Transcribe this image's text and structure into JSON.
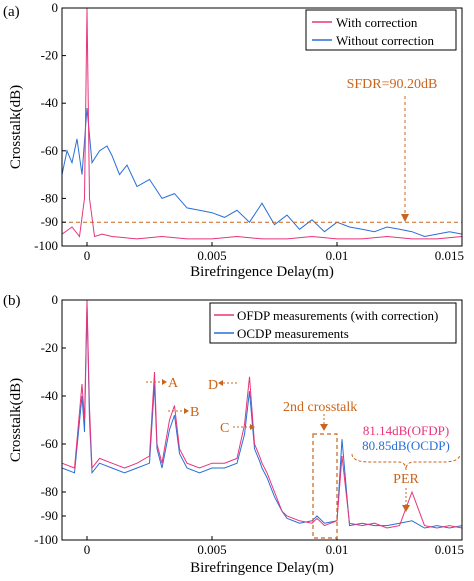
{
  "colors": {
    "with": "#e8347a",
    "without": "#2a6fd6",
    "annot": "#c9651c",
    "dash": "#c9651c",
    "axis": "#000000"
  },
  "chart_data": [
    {
      "panel_label": "(a)",
      "type": "line",
      "xlabel": "Birefringence Delay(m)",
      "ylabel": "Crosstalk(dB)",
      "xlim": [
        -0.001,
        0.015
      ],
      "ylim": [
        -100,
        0
      ],
      "xticks": [
        0,
        0.005,
        0.01,
        0.015
      ],
      "xtick_labels": [
        "0",
        "0.005",
        "0.01",
        "0.015"
      ],
      "yticks": [
        0,
        -20,
        -40,
        -60,
        -80,
        -90,
        -100
      ],
      "ytick_labels": [
        "0",
        "-20",
        "-40",
        "-60",
        "-80",
        "-90",
        "-100"
      ],
      "legend": {
        "placement": "top-right",
        "entries": [
          "With correction",
          "Without correction"
        ]
      },
      "series": [
        {
          "name": "With correction",
          "color_key": "with",
          "x": [
            -0.001,
            -0.0006,
            -0.0003,
            -0.0001,
            0,
            0.0001,
            0.0003,
            0.0006,
            0.001,
            0.002,
            0.003,
            0.004,
            0.005,
            0.006,
            0.007,
            0.008,
            0.009,
            0.01,
            0.011,
            0.012,
            0.013,
            0.014,
            0.015
          ],
          "y": [
            -95,
            -92,
            -96,
            -80,
            0,
            -80,
            -96,
            -95,
            -96,
            -97,
            -96,
            -97,
            -97,
            -96,
            -97,
            -97,
            -96,
            -97,
            -97,
            -96,
            -97,
            -97,
            -96
          ]
        },
        {
          "name": "Without correction",
          "color_key": "without",
          "x": [
            -0.001,
            -0.0008,
            -0.0006,
            -0.0004,
            -0.0002,
            0,
            0.0002,
            0.0005,
            0.0008,
            0.001,
            0.0013,
            0.0016,
            0.002,
            0.0025,
            0.003,
            0.0035,
            0.004,
            0.0045,
            0.005,
            0.0055,
            0.006,
            0.0065,
            0.007,
            0.0075,
            0.008,
            0.0085,
            0.009,
            0.0095,
            0.01,
            0.0105,
            0.011,
            0.0115,
            0.012,
            0.0125,
            0.013,
            0.0135,
            0.014,
            0.0145,
            0.015
          ],
          "y": [
            -70,
            -60,
            -65,
            -55,
            -70,
            -42,
            -65,
            -60,
            -58,
            -62,
            -70,
            -66,
            -75,
            -72,
            -80,
            -78,
            -84,
            -85,
            -86,
            -88,
            -85,
            -90,
            -82,
            -91,
            -87,
            -93,
            -89,
            -94,
            -90,
            -92,
            -93,
            -94,
            -92,
            -93,
            -94,
            -96,
            -95,
            -94,
            -95
          ]
        }
      ],
      "reference_lines": [
        {
          "y": -90,
          "style": "dashed"
        }
      ],
      "annotations": [
        {
          "text": "SFDR=90.20dB",
          "x": 0.013,
          "y": -25,
          "arrow_to": [
            0.013,
            -90
          ]
        }
      ]
    },
    {
      "panel_label": "(b)",
      "type": "line",
      "xlabel": "Birefringence Delay(m)",
      "ylabel": "Crosstalk(dB)",
      "xlim": [
        -0.001,
        0.015
      ],
      "ylim": [
        -100,
        0
      ],
      "xticks": [
        0,
        0.005,
        0.01,
        0.015
      ],
      "xtick_labels": [
        "0",
        "0.005",
        "0.01",
        "0.015"
      ],
      "yticks": [
        0,
        -20,
        -40,
        -60,
        -80,
        -90,
        -100
      ],
      "ytick_labels": [
        "0",
        "-20",
        "-40",
        "-60",
        "-80",
        "-90",
        "-100"
      ],
      "legend": {
        "placement": "top-right",
        "entries": [
          "OFDP measurements (with correction)",
          "OCDP measurements"
        ]
      },
      "series": [
        {
          "name": "OFDP measurements (with correction)",
          "color_key": "with",
          "x": [
            -0.001,
            -0.0005,
            -0.0002,
            -0.0001,
            0,
            0.0001,
            0.0002,
            0.0005,
            0.001,
            0.0015,
            0.002,
            0.0025,
            0.0027,
            0.0028,
            0.003,
            0.0033,
            0.0035,
            0.0037,
            0.004,
            0.0045,
            0.005,
            0.0055,
            0.006,
            0.0063,
            0.0065,
            0.0067,
            0.0069,
            0.007,
            0.0072,
            0.0075,
            0.0078,
            0.008,
            0.0085,
            0.009,
            0.0092,
            0.0095,
            0.01,
            0.0102,
            0.0105,
            0.011,
            0.0115,
            0.012,
            0.0125,
            0.013,
            0.0135,
            0.014,
            0.0145,
            0.015
          ],
          "y": [
            -68,
            -70,
            -35,
            -50,
            0,
            -45,
            -70,
            -66,
            -68,
            -70,
            -68,
            -65,
            -30,
            -60,
            -68,
            -50,
            -44,
            -62,
            -68,
            -70,
            -68,
            -68,
            -66,
            -52,
            -32,
            -60,
            -65,
            -68,
            -72,
            -80,
            -88,
            -90,
            -92,
            -93,
            -91,
            -94,
            -92,
            -65,
            -93,
            -94,
            -93,
            -95,
            -94,
            -80,
            -94,
            -95,
            -94,
            -95
          ]
        },
        {
          "name": "OCDP measurements",
          "color_key": "without",
          "x": [
            -0.001,
            -0.0005,
            -0.0002,
            -0.0001,
            0,
            0.0001,
            0.0002,
            0.0005,
            0.001,
            0.0015,
            0.002,
            0.0025,
            0.0027,
            0.0028,
            0.003,
            0.0033,
            0.0035,
            0.0037,
            0.004,
            0.0045,
            0.005,
            0.0055,
            0.006,
            0.0063,
            0.0065,
            0.0067,
            0.0069,
            0.007,
            0.0072,
            0.0075,
            0.0078,
            0.008,
            0.0085,
            0.009,
            0.0092,
            0.0095,
            0.01,
            0.0102,
            0.0105,
            0.011,
            0.0115,
            0.012,
            0.0125,
            0.013,
            0.0135,
            0.014,
            0.0145,
            0.015
          ],
          "y": [
            -70,
            -72,
            -40,
            -55,
            -2,
            -50,
            -72,
            -68,
            -70,
            -72,
            -70,
            -68,
            -35,
            -62,
            -70,
            -54,
            -48,
            -64,
            -70,
            -72,
            -70,
            -70,
            -68,
            -56,
            -38,
            -62,
            -67,
            -70,
            -74,
            -82,
            -88,
            -91,
            -93,
            -92,
            -90,
            -93,
            -92,
            -58,
            -94,
            -93,
            -94,
            -94,
            -93,
            -92,
            -95,
            -94,
            -95,
            -94
          ]
        }
      ],
      "annotations": [
        {
          "text": "A",
          "x": 0.0027,
          "y": -30
        },
        {
          "text": "B",
          "x": 0.0035,
          "y": -44
        },
        {
          "text": "C",
          "x": 0.0067,
          "y": -52
        },
        {
          "text": "D",
          "x": 0.0065,
          "y": -32
        },
        {
          "text": "2nd crosstalk",
          "x": 0.0097,
          "y": -58
        },
        {
          "text": "81.14dB(OFDP)",
          "x": 0.013,
          "y": -52
        },
        {
          "text": "80.85dB(OCDP)",
          "x": 0.013,
          "y": -58
        },
        {
          "text": "PER",
          "x": 0.013,
          "y": -72
        }
      ]
    }
  ]
}
